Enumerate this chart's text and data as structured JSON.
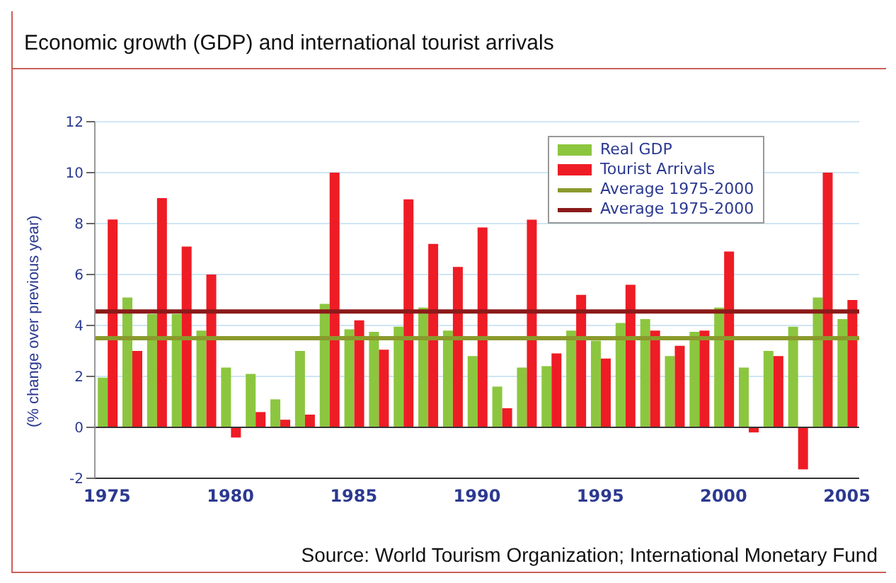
{
  "chart_data": {
    "type": "bar",
    "title": "Economic growth (GDP) and international tourist arrivals",
    "ylabel": "(% change over previous year)",
    "categories": [
      "1975",
      null,
      null,
      null,
      null,
      "1980",
      null,
      null,
      null,
      null,
      "1985",
      null,
      null,
      null,
      null,
      "1990",
      null,
      null,
      null,
      null,
      "1995",
      null,
      null,
      null,
      null,
      "2000",
      null,
      null,
      null,
      null,
      "2005"
    ],
    "series": [
      {
        "name": "Real GDP",
        "color": "#8cc63f",
        "values": [
          1.95,
          5.1,
          4.45,
          4.45,
          3.8,
          2.35,
          2.1,
          1.1,
          3.0,
          4.85,
          3.85,
          3.75,
          3.95,
          4.7,
          3.8,
          2.8,
          1.6,
          2.35,
          2.4,
          3.8,
          3.4,
          4.1,
          4.25,
          2.8,
          3.75,
          4.7,
          2.35,
          3.0,
          3.95,
          5.1,
          4.25
        ]
      },
      {
        "name": "Tourist Arrivals",
        "color": "#ee1c25",
        "values": [
          8.16,
          3.0,
          9.0,
          7.1,
          6.0,
          -0.4,
          0.6,
          0.3,
          0.5,
          10.0,
          4.2,
          3.05,
          8.95,
          7.2,
          6.3,
          7.85,
          0.75,
          8.15,
          2.9,
          5.2,
          2.7,
          5.6,
          3.8,
          3.2,
          3.8,
          6.9,
          -0.2,
          2.8,
          -1.65,
          10.0,
          5.0
        ]
      }
    ],
    "ref_lines": [
      {
        "axis": "y",
        "value": 3.5,
        "label": "Average 1975-2000",
        "color": "#8a9a2c"
      },
      {
        "axis": "y",
        "value": 4.55,
        "label": "Average 1975-2000",
        "color": "#8b1a1a"
      }
    ],
    "ylim": [
      -2,
      12
    ],
    "yticks": [
      -2,
      0,
      2,
      4,
      6,
      8,
      10,
      12
    ],
    "grid": "y",
    "legend": "top right",
    "annotations": [
      "Source: World Tourism Organization; International Monetary Fund"
    ]
  }
}
